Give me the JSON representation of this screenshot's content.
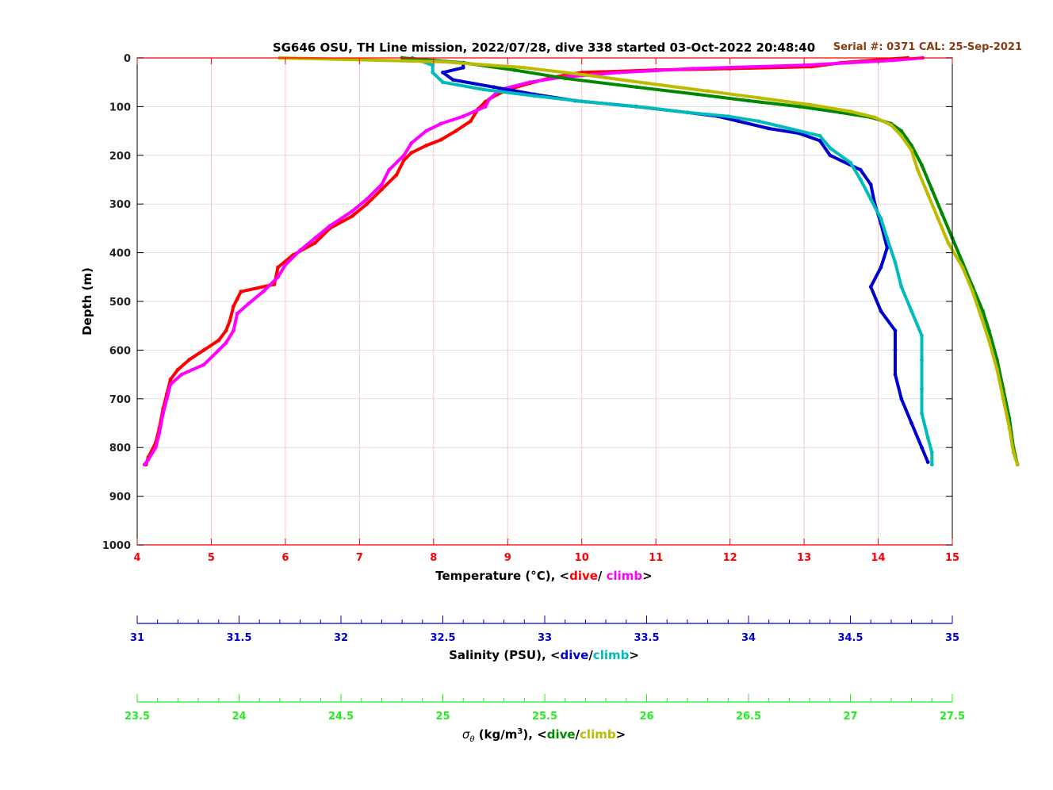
{
  "colors": {
    "temp_axis": "#ff0000",
    "sal_axis": "#0000cc",
    "sig_axis": "#22ee22",
    "temp_dive": "#ff0000",
    "temp_climb": "#ff00ff",
    "sal_dive": "#0000cc",
    "sal_climb": "#00bbbb",
    "sig_dive": "#008800",
    "sig_climb": "#bbbb00",
    "serial": "#8b3a0f",
    "grid_v": "#f7c6cf",
    "grid_h": "#dddddd"
  },
  "chart_data": {
    "type": "line",
    "title": "SG646 OSU, TH Line mission, 2022/07/28, dive 338 started 03-Oct-2022 20:48:40",
    "serial_note": "Serial #: 0371  CAL: 25-Sep-2021",
    "ylabel": "Depth (m)",
    "ylim": [
      0,
      1000
    ],
    "y_ticks": [
      "0",
      "100",
      "200",
      "300",
      "400",
      "500",
      "600",
      "700",
      "800",
      "900",
      "1000"
    ],
    "axes": {
      "temperature": {
        "label_main": "Temperature (°C), <",
        "label_dive": "dive",
        "label_sep": "/ ",
        "label_climb": "climb",
        "label_end": ">",
        "range": [
          4,
          15
        ],
        "ticks": [
          "4",
          "5",
          "6",
          "7",
          "8",
          "9",
          "10",
          "11",
          "12",
          "13",
          "14",
          "15"
        ]
      },
      "salinity": {
        "label_main": "Salinity (PSU), <",
        "label_dive": "dive",
        "label_sep": "/",
        "label_climb": "climb",
        "label_end": ">",
        "range": [
          31,
          35
        ],
        "ticks": [
          "31",
          "31.5",
          "32",
          "32.5",
          "33",
          "33.5",
          "34",
          "34.5",
          "35"
        ]
      },
      "sigma": {
        "label_sym": "σ",
        "label_sub": "θ",
        "label_unit": " (kg/m",
        "label_sup": "3",
        "label_main": "), <",
        "label_dive": "dive",
        "label_sep": "/",
        "label_climb": "climb",
        "label_end": ">",
        "range": [
          23.5,
          27.5
        ],
        "ticks": [
          "23.5",
          "24",
          "24.5",
          "25",
          "25.5",
          "26",
          "26.5",
          "27",
          "27.5"
        ]
      }
    },
    "series": [
      {
        "axis": "temperature",
        "cast": "dive",
        "points": [
          [
            14.4,
            0
          ],
          [
            14.1,
            3
          ],
          [
            13.5,
            10
          ],
          [
            13.1,
            18
          ],
          [
            12.0,
            22
          ],
          [
            11.0,
            25
          ],
          [
            10.0,
            30
          ],
          [
            9.6,
            40
          ],
          [
            9.3,
            52
          ],
          [
            9.0,
            65
          ],
          [
            8.8,
            80
          ],
          [
            8.7,
            90
          ],
          [
            8.6,
            105
          ],
          [
            8.5,
            130
          ],
          [
            8.3,
            150
          ],
          [
            8.1,
            168
          ],
          [
            7.9,
            180
          ],
          [
            7.7,
            195
          ],
          [
            7.6,
            210
          ],
          [
            7.5,
            240
          ],
          [
            7.3,
            270
          ],
          [
            7.1,
            300
          ],
          [
            6.9,
            325
          ],
          [
            6.6,
            350
          ],
          [
            6.4,
            380
          ],
          [
            6.1,
            405
          ],
          [
            5.9,
            430
          ],
          [
            5.85,
            465
          ],
          [
            5.4,
            480
          ],
          [
            5.35,
            495
          ],
          [
            5.3,
            510
          ],
          [
            5.25,
            540
          ],
          [
            5.2,
            560
          ],
          [
            5.1,
            580
          ],
          [
            4.9,
            600
          ],
          [
            4.7,
            620
          ],
          [
            4.55,
            640
          ],
          [
            4.45,
            660
          ],
          [
            4.4,
            690
          ],
          [
            4.35,
            720
          ],
          [
            4.3,
            760
          ],
          [
            4.25,
            790
          ],
          [
            4.15,
            820
          ],
          [
            4.12,
            835
          ]
        ]
      },
      {
        "axis": "temperature",
        "cast": "climb",
        "points": [
          [
            14.6,
            0
          ],
          [
            14.2,
            5
          ],
          [
            13.0,
            15
          ],
          [
            11.5,
            22
          ],
          [
            10.5,
            30
          ],
          [
            9.7,
            40
          ],
          [
            9.3,
            50
          ],
          [
            8.9,
            65
          ],
          [
            8.75,
            85
          ],
          [
            8.7,
            100
          ],
          [
            8.4,
            120
          ],
          [
            8.1,
            135
          ],
          [
            7.9,
            150
          ],
          [
            7.7,
            175
          ],
          [
            7.6,
            200
          ],
          [
            7.4,
            230
          ],
          [
            7.3,
            260
          ],
          [
            7.1,
            290
          ],
          [
            6.9,
            315
          ],
          [
            6.6,
            345
          ],
          [
            6.4,
            370
          ],
          [
            6.2,
            395
          ],
          [
            6.0,
            425
          ],
          [
            5.9,
            450
          ],
          [
            5.7,
            480
          ],
          [
            5.5,
            505
          ],
          [
            5.35,
            525
          ],
          [
            5.3,
            560
          ],
          [
            5.2,
            585
          ],
          [
            5.1,
            600
          ],
          [
            4.9,
            630
          ],
          [
            4.6,
            650
          ],
          [
            4.45,
            670
          ],
          [
            4.4,
            700
          ],
          [
            4.35,
            730
          ],
          [
            4.3,
            770
          ],
          [
            4.25,
            800
          ],
          [
            4.15,
            825
          ],
          [
            4.1,
            835
          ]
        ]
      },
      {
        "axis": "salinity",
        "cast": "dive",
        "points": [
          [
            32.6,
            10
          ],
          [
            32.6,
            20
          ],
          [
            32.5,
            30
          ],
          [
            32.55,
            45
          ],
          [
            32.75,
            60
          ],
          [
            32.95,
            75
          ],
          [
            33.15,
            88
          ],
          [
            33.45,
            100
          ],
          [
            33.7,
            112
          ],
          [
            33.85,
            120
          ],
          [
            33.95,
            130
          ],
          [
            34.1,
            145
          ],
          [
            34.25,
            155
          ],
          [
            34.35,
            170
          ],
          [
            34.4,
            200
          ],
          [
            34.55,
            230
          ],
          [
            34.6,
            260
          ],
          [
            34.62,
            300
          ],
          [
            34.65,
            340
          ],
          [
            34.68,
            390
          ],
          [
            34.65,
            430
          ],
          [
            34.6,
            470
          ],
          [
            34.65,
            520
          ],
          [
            34.72,
            560
          ],
          [
            34.72,
            600
          ],
          [
            34.72,
            650
          ],
          [
            34.75,
            700
          ],
          [
            34.8,
            750
          ],
          [
            34.85,
            800
          ],
          [
            34.88,
            830
          ]
        ]
      },
      {
        "axis": "salinity",
        "cast": "climb",
        "points": [
          [
            32.35,
            0
          ],
          [
            32.45,
            15
          ],
          [
            32.45,
            30
          ],
          [
            32.5,
            50
          ],
          [
            32.7,
            65
          ],
          [
            32.95,
            78
          ],
          [
            33.2,
            90
          ],
          [
            33.5,
            102
          ],
          [
            33.7,
            112
          ],
          [
            33.9,
            120
          ],
          [
            34.05,
            130
          ],
          [
            34.2,
            145
          ],
          [
            34.35,
            160
          ],
          [
            34.4,
            185
          ],
          [
            34.5,
            215
          ],
          [
            34.55,
            250
          ],
          [
            34.6,
            290
          ],
          [
            34.65,
            330
          ],
          [
            34.68,
            370
          ],
          [
            34.72,
            420
          ],
          [
            34.75,
            470
          ],
          [
            34.8,
            520
          ],
          [
            34.85,
            570
          ],
          [
            34.85,
            620
          ],
          [
            34.85,
            680
          ],
          [
            34.85,
            730
          ],
          [
            34.88,
            780
          ],
          [
            34.9,
            810
          ],
          [
            34.9,
            835
          ]
        ]
      },
      {
        "axis": "sigma",
        "cast": "dive",
        "points": [
          [
            24.8,
            0
          ],
          [
            25.1,
            10
          ],
          [
            25.35,
            25
          ],
          [
            25.6,
            42
          ],
          [
            25.95,
            60
          ],
          [
            26.25,
            75
          ],
          [
            26.5,
            88
          ],
          [
            26.75,
            100
          ],
          [
            26.95,
            112
          ],
          [
            27.1,
            122
          ],
          [
            27.2,
            135
          ],
          [
            27.25,
            150
          ],
          [
            27.3,
            180
          ],
          [
            27.35,
            220
          ],
          [
            27.4,
            270
          ],
          [
            27.45,
            320
          ],
          [
            27.5,
            370
          ],
          [
            27.55,
            420
          ],
          [
            27.6,
            470
          ],
          [
            27.65,
            520
          ],
          [
            27.68,
            560
          ],
          [
            27.72,
            620
          ],
          [
            27.75,
            680
          ],
          [
            27.78,
            740
          ],
          [
            27.8,
            800
          ],
          [
            27.82,
            835
          ]
        ]
      },
      {
        "axis": "sigma",
        "cast": "climb",
        "points": [
          [
            24.2,
            0
          ],
          [
            25.0,
            8
          ],
          [
            25.4,
            20
          ],
          [
            25.7,
            35
          ],
          [
            26.0,
            52
          ],
          [
            26.3,
            68
          ],
          [
            26.55,
            82
          ],
          [
            26.8,
            96
          ],
          [
            27.0,
            110
          ],
          [
            27.12,
            122
          ],
          [
            27.2,
            138
          ],
          [
            27.25,
            160
          ],
          [
            27.3,
            190
          ],
          [
            27.33,
            230
          ],
          [
            27.38,
            280
          ],
          [
            27.43,
            330
          ],
          [
            27.48,
            380
          ],
          [
            27.55,
            430
          ],
          [
            27.6,
            480
          ],
          [
            27.64,
            530
          ],
          [
            27.68,
            580
          ],
          [
            27.72,
            640
          ],
          [
            27.75,
            700
          ],
          [
            27.78,
            760
          ],
          [
            27.8,
            810
          ],
          [
            27.82,
            835
          ]
        ]
      }
    ]
  }
}
